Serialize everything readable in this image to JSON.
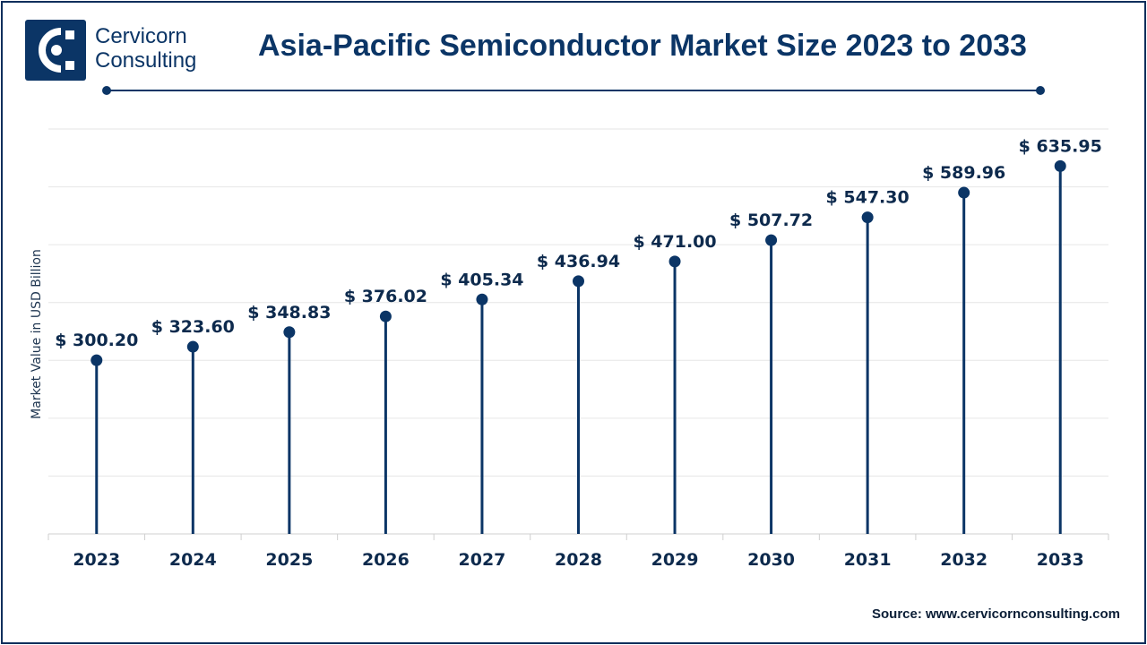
{
  "header": {
    "logo_line1": "Cervicorn",
    "logo_line2": "Consulting",
    "title": "Asia-Pacific Semiconductor Market Size 2023 to 2033"
  },
  "source": "Source: www.cervicornconsulting.com",
  "colors": {
    "primary": "#0b3566",
    "grid": "#e6e6e6",
    "text": "#0d2a4d"
  },
  "icons": {
    "logo": "cervicorn-logo-icon"
  },
  "chart_data": {
    "type": "lollipop",
    "categories": [
      "2023",
      "2024",
      "2025",
      "2026",
      "2027",
      "2028",
      "2029",
      "2030",
      "2031",
      "2032",
      "2033"
    ],
    "values": [
      300.2,
      323.6,
      348.83,
      376.02,
      405.34,
      436.94,
      471.0,
      507.72,
      547.3,
      589.96,
      635.95
    ],
    "data_labels": [
      "$ 300.20",
      "$ 323.60",
      "$ 348.83",
      "$ 376.02",
      "$ 405.34",
      "$ 436.94",
      "$ 471.00",
      "$ 507.72",
      "$ 547.30",
      "$ 589.96",
      "$ 635.95"
    ],
    "title": "Asia-Pacific Semiconductor Market Size 2023 to 2033",
    "ylabel": "Market Value in USD Billion",
    "xlabel": "",
    "ylim": [
      0,
      700
    ],
    "grid": true,
    "legend": "none"
  }
}
